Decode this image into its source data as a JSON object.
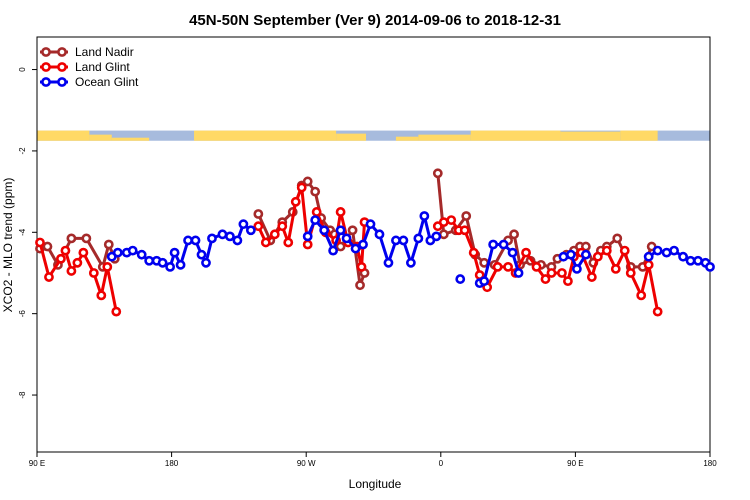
{
  "chart_data": {
    "type": "line",
    "title": "45N-50N September (Ver 9)   2014-09-06 to 2018-12-31",
    "xlabel": "Longitude",
    "ylabel": "XCO2 - MLO trend (ppm)",
    "xlim": [
      90,
      540
    ],
    "ylim": [
      -9.4,
      0.8
    ],
    "x_ticks": [
      {
        "value": 90,
        "label": "90 E"
      },
      {
        "value": 180,
        "label": "180"
      },
      {
        "value": 270,
        "label": "90 W"
      },
      {
        "value": 360,
        "label": "0"
      },
      {
        "value": 450,
        "label": "90 E"
      },
      {
        "value": 540,
        "label": "180"
      }
    ],
    "y_ticks": [
      {
        "value": 0,
        "label": "0"
      },
      {
        "value": -2,
        "label": "-2"
      },
      {
        "value": -4,
        "label": "-4"
      },
      {
        "value": -6,
        "label": "-6"
      },
      {
        "value": -8,
        "label": "-8"
      }
    ],
    "legend_position": "top-left",
    "land_mask_band": {
      "y_from": -1.75,
      "y_top": -1.5,
      "land_color": "#FFD966",
      "ocean_color": "#A7BBDD"
    },
    "series": [
      {
        "name": "Land Nadir",
        "color": "#A52A2A",
        "segments": [
          [
            [
              92,
              -4.4
            ],
            [
              97,
              -4.35
            ],
            [
              104,
              -4.8
            ],
            [
              113,
              -4.15
            ],
            [
              123,
              -4.15
            ],
            [
              134,
              -4.85
            ],
            [
              138,
              -4.3
            ],
            [
              142,
              -4.65
            ]
          ],
          [
            [
              238,
              -3.55
            ],
            [
              246,
              -4.2
            ],
            [
              254,
              -3.75
            ],
            [
              261,
              -3.5
            ],
            [
              267,
              -2.85
            ],
            [
              271,
              -2.75
            ],
            [
              276,
              -3.0
            ],
            [
              280,
              -3.65
            ],
            [
              286,
              -3.95
            ],
            [
              289,
              -4.05
            ],
            [
              293,
              -4.35
            ],
            [
              301,
              -3.95
            ],
            [
              306,
              -5.3
            ],
            [
              309,
              -5.0
            ]
          ],
          [
            [
              358,
              -2.55
            ],
            [
              362,
              -4.05
            ],
            [
              370,
              -3.95
            ],
            [
              377,
              -3.6
            ],
            [
              383,
              -4.55
            ],
            [
              389,
              -4.75
            ],
            [
              396,
              -4.8
            ],
            [
              405,
              -4.2
            ],
            [
              409,
              -4.05
            ],
            [
              413,
              -4.8
            ],
            [
              420,
              -4.7
            ],
            [
              427,
              -4.8
            ],
            [
              434,
              -4.85
            ],
            [
              438,
              -4.65
            ],
            [
              444,
              -4.55
            ],
            [
              449,
              -4.45
            ],
            [
              453,
              -4.35
            ],
            [
              457,
              -4.35
            ],
            [
              462,
              -4.75
            ],
            [
              467,
              -4.45
            ],
            [
              471,
              -4.35
            ],
            [
              478,
              -4.15
            ],
            [
              487,
              -4.85
            ],
            [
              495,
              -4.85
            ],
            [
              501,
              -4.35
            ]
          ]
        ]
      },
      {
        "name": "Land Glint",
        "color": "#EE0000",
        "segments": [
          [
            [
              92,
              -4.25
            ],
            [
              98,
              -5.1
            ],
            [
              106,
              -4.65
            ],
            [
              109,
              -4.45
            ],
            [
              113,
              -4.95
            ],
            [
              117,
              -4.75
            ],
            [
              121,
              -4.5
            ],
            [
              128,
              -5.0
            ],
            [
              133,
              -5.55
            ],
            [
              137,
              -4.85
            ],
            [
              143,
              -5.95
            ]
          ],
          [
            [
              238,
              -3.85
            ],
            [
              243,
              -4.25
            ],
            [
              249,
              -4.05
            ],
            [
              254,
              -3.85
            ],
            [
              258,
              -4.25
            ],
            [
              263,
              -3.25
            ],
            [
              267,
              -2.9
            ],
            [
              271,
              -4.3
            ],
            [
              277,
              -3.5
            ],
            [
              283,
              -4.0
            ],
            [
              290,
              -4.2
            ],
            [
              293,
              -3.5
            ],
            [
              298,
              -4.25
            ],
            [
              304,
              -4.35
            ],
            [
              307,
              -4.85
            ],
            [
              309,
              -3.75
            ]
          ],
          [
            [
              358,
              -3.85
            ],
            [
              362,
              -3.75
            ],
            [
              367,
              -3.7
            ],
            [
              372,
              -3.95
            ],
            [
              376,
              -3.95
            ],
            [
              382,
              -4.5
            ],
            [
              386,
              -5.05
            ],
            [
              391,
              -5.35
            ],
            [
              398,
              -4.85
            ],
            [
              405,
              -4.85
            ],
            [
              410,
              -5.0
            ],
            [
              417,
              -4.5
            ],
            [
              424,
              -4.85
            ],
            [
              430,
              -5.15
            ],
            [
              434,
              -5.0
            ],
            [
              441,
              -5.0
            ],
            [
              445,
              -5.2
            ],
            [
              449,
              -4.6
            ],
            [
              454,
              -4.5
            ],
            [
              461,
              -5.1
            ],
            [
              465,
              -4.6
            ],
            [
              471,
              -4.45
            ],
            [
              477,
              -4.9
            ],
            [
              483,
              -4.45
            ],
            [
              487,
              -5.0
            ],
            [
              494,
              -5.55
            ],
            [
              499,
              -4.8
            ],
            [
              505,
              -5.95
            ]
          ]
        ]
      },
      {
        "name": "Ocean Glint",
        "color": "#0000EE",
        "segments": [
          [
            [
              140,
              -4.6
            ],
            [
              144,
              -4.5
            ],
            [
              150,
              -4.5
            ],
            [
              154,
              -4.45
            ],
            [
              160,
              -4.55
            ],
            [
              165,
              -4.7
            ],
            [
              170,
              -4.7
            ],
            [
              174,
              -4.75
            ],
            [
              179,
              -4.85
            ],
            [
              182,
              -4.5
            ],
            [
              186,
              -4.8
            ],
            [
              191,
              -4.2
            ],
            [
              196,
              -4.2
            ],
            [
              200,
              -4.55
            ],
            [
              203,
              -4.75
            ],
            [
              207,
              -4.15
            ],
            [
              214,
              -4.05
            ],
            [
              219,
              -4.1
            ],
            [
              224,
              -4.2
            ],
            [
              228,
              -3.8
            ],
            [
              233,
              -3.95
            ]
          ],
          [
            [
              271,
              -4.1
            ],
            [
              276,
              -3.7
            ],
            [
              282,
              -3.95
            ],
            [
              288,
              -4.45
            ],
            [
              293,
              -3.95
            ],
            [
              297,
              -4.15
            ],
            [
              303,
              -4.4
            ],
            [
              308,
              -4.3
            ],
            [
              313,
              -3.8
            ],
            [
              319,
              -4.05
            ],
            [
              325,
              -4.75
            ],
            [
              330,
              -4.2
            ],
            [
              335,
              -4.2
            ],
            [
              340,
              -4.75
            ],
            [
              345,
              -4.15
            ],
            [
              349,
              -3.6
            ],
            [
              353,
              -4.2
            ],
            [
              357,
              -4.1
            ]
          ],
          [
            [
              373,
              -5.15
            ]
          ],
          [
            [
              386,
              -5.25
            ],
            [
              389,
              -5.2
            ],
            [
              395,
              -4.3
            ],
            [
              402,
              -4.3
            ],
            [
              408,
              -4.5
            ],
            [
              412,
              -5.0
            ]
          ],
          [
            [
              442,
              -4.6
            ],
            [
              447,
              -4.55
            ],
            [
              451,
              -4.9
            ],
            [
              457,
              -4.55
            ]
          ],
          [
            [
              499,
              -4.6
            ],
            [
              505,
              -4.45
            ],
            [
              511,
              -4.5
            ],
            [
              516,
              -4.45
            ],
            [
              522,
              -4.6
            ],
            [
              527,
              -4.7
            ],
            [
              532,
              -4.7
            ],
            [
              537,
              -4.75
            ],
            [
              540,
              -4.85
            ]
          ]
        ]
      }
    ]
  }
}
